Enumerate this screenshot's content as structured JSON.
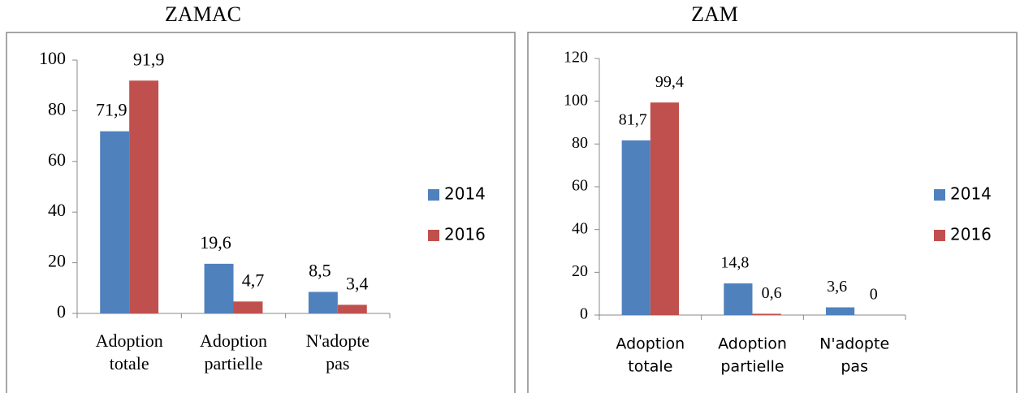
{
  "chart_data": [
    {
      "type": "bar",
      "title": "ZAMAC",
      "categories": [
        [
          "Adoption",
          "totale"
        ],
        [
          "Adoption",
          "partielle"
        ],
        [
          "N'adopte",
          "pas"
        ]
      ],
      "series": [
        {
          "name": "2014",
          "color": "#4f81bd",
          "values": [
            71.9,
            19.6,
            8.5
          ],
          "value_labels": [
            "71,9",
            "19,6",
            "8,5"
          ]
        },
        {
          "name": "2016",
          "color": "#c0504d",
          "values": [
            91.9,
            4.7,
            3.4
          ],
          "value_labels": [
            "91,9",
            "4,7",
            "3,4"
          ]
        }
      ],
      "ylim": [
        0,
        100
      ],
      "yticks": [
        0,
        20,
        40,
        60,
        80,
        100
      ],
      "legend": "right"
    },
    {
      "type": "bar",
      "title": "ZAM",
      "categories": [
        [
          "Adoption",
          "totale"
        ],
        [
          "Adoption",
          "partielle"
        ],
        [
          "N'adopte",
          "pas"
        ]
      ],
      "series": [
        {
          "name": "2014",
          "color": "#4f81bd",
          "values": [
            81.7,
            14.8,
            3.6
          ],
          "value_labels": [
            "81,7",
            "14,8",
            "3,6"
          ]
        },
        {
          "name": "2016",
          "color": "#c0504d",
          "values": [
            99.4,
            0.6,
            0
          ],
          "value_labels": [
            "99,4",
            "0,6",
            "0"
          ]
        }
      ],
      "ylim": [
        0,
        120
      ],
      "yticks": [
        0,
        20,
        40,
        60,
        80,
        100,
        120
      ],
      "legend": "right"
    }
  ]
}
